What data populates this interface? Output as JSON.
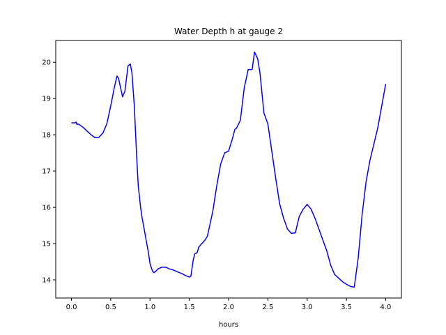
{
  "chart_data": {
    "type": "line",
    "title": "Water Depth h at gauge 2",
    "xlabel": "hours",
    "ylabel": "",
    "xlim": [
      -0.2,
      4.2
    ],
    "ylim": [
      13.5,
      20.6
    ],
    "xticks": [
      0.0,
      0.5,
      1.0,
      1.5,
      2.0,
      2.5,
      3.0,
      3.5,
      4.0
    ],
    "xtick_labels": [
      "0.0",
      "0.5",
      "1.0",
      "1.5",
      "2.0",
      "2.5",
      "3.0",
      "3.5",
      "4.0"
    ],
    "yticks": [
      14,
      15,
      16,
      17,
      18,
      19,
      20
    ],
    "ytick_labels": [
      "14",
      "15",
      "16",
      "17",
      "18",
      "19",
      "20"
    ],
    "grid": false,
    "legend": "none",
    "series": [
      {
        "color": "#0000ff",
        "x": [
          0.0,
          0.05,
          0.06,
          0.07,
          0.08,
          0.1,
          0.15,
          0.2,
          0.25,
          0.3,
          0.35,
          0.4,
          0.45,
          0.5,
          0.55,
          0.58,
          0.6,
          0.62,
          0.65,
          0.68,
          0.7,
          0.72,
          0.75,
          0.77,
          0.8,
          0.83,
          0.85,
          0.88,
          0.9,
          0.93,
          0.95,
          0.98,
          1.0,
          1.03,
          1.05,
          1.08,
          1.1,
          1.15,
          1.2,
          1.25,
          1.3,
          1.35,
          1.4,
          1.45,
          1.5,
          1.52,
          1.55,
          1.57,
          1.6,
          1.62,
          1.65,
          1.68,
          1.7,
          1.73,
          1.75,
          1.8,
          1.85,
          1.9,
          1.95,
          2.0,
          2.05,
          2.08,
          2.1,
          2.15,
          2.2,
          2.25,
          2.3,
          2.33,
          2.37,
          2.4,
          2.45,
          2.5,
          2.55,
          2.6,
          2.65,
          2.7,
          2.75,
          2.8,
          2.85,
          2.9,
          2.95,
          3.0,
          3.05,
          3.1,
          3.15,
          3.2,
          3.25,
          3.3,
          3.35,
          3.4,
          3.45,
          3.5,
          3.55,
          3.6,
          3.65,
          3.7,
          3.75,
          3.8,
          3.85,
          3.9,
          3.95,
          4.0
        ],
        "y": [
          18.33,
          18.33,
          18.35,
          18.28,
          18.3,
          18.28,
          18.2,
          18.1,
          18.0,
          17.92,
          17.93,
          18.05,
          18.3,
          18.8,
          19.35,
          19.62,
          19.55,
          19.35,
          19.05,
          19.2,
          19.55,
          19.9,
          19.95,
          19.7,
          18.8,
          17.4,
          16.6,
          16.0,
          15.7,
          15.35,
          15.1,
          14.75,
          14.45,
          14.25,
          14.2,
          14.25,
          14.3,
          14.35,
          14.35,
          14.3,
          14.27,
          14.22,
          14.18,
          14.12,
          14.08,
          14.1,
          14.55,
          14.72,
          14.75,
          14.9,
          14.98,
          15.05,
          15.1,
          15.2,
          15.4,
          15.9,
          16.6,
          17.2,
          17.5,
          17.55,
          17.9,
          18.15,
          18.18,
          18.4,
          19.3,
          19.8,
          19.8,
          20.28,
          20.1,
          19.7,
          18.6,
          18.3,
          17.55,
          16.8,
          16.1,
          15.7,
          15.4,
          15.28,
          15.3,
          15.75,
          15.95,
          16.08,
          15.95,
          15.7,
          15.4,
          15.1,
          14.8,
          14.4,
          14.15,
          14.05,
          13.95,
          13.88,
          13.82,
          13.8,
          14.6,
          15.8,
          16.7,
          17.3,
          17.75,
          18.2,
          18.8,
          19.4
        ]
      }
    ]
  }
}
